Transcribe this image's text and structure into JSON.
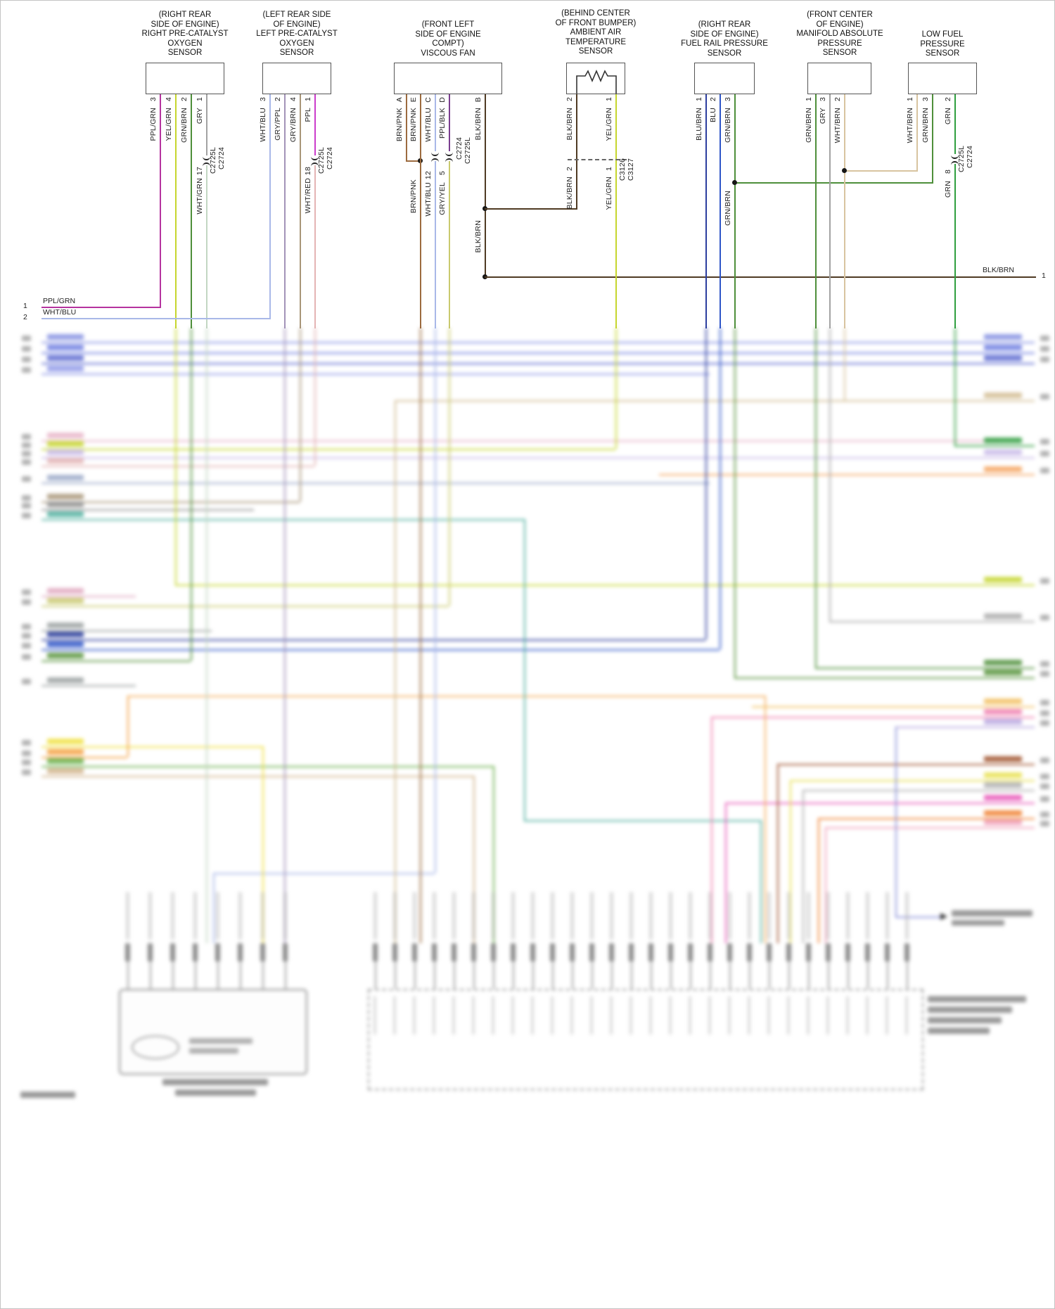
{
  "diagram_type": "automotive wiring diagram",
  "wire_colors": {
    "PPL/GRN": "#b5339f",
    "YEL/GRN": "#c6d62e",
    "GRN/BRN": "#4e8f3a",
    "GRY": "#a2a2a2",
    "WHT/GRN": "#c3d6c3",
    "WHT/BLU": "#a9b8e8",
    "GRY/PPL": "#a393b8",
    "GRY/BRN": "#a89578",
    "PPL": "#cb3ccb",
    "WHT/RED": "#e4b4b4",
    "BRN/PNK": "#9c6b3f",
    "PPL/BLK": "#7a3e8f",
    "GRY/YEL": "#c9c96e",
    "BLK/BRN": "#4f3a23",
    "BLU/BRN": "#2c3e9e",
    "BLU": "#2e55c8",
    "WHT/BRN": "#d8c4a0",
    "GRN": "#2f9e3f"
  },
  "components": [
    {
      "title": "(RIGHT REAR\nSIDE OF ENGINE)\nRIGHT PRE-CATALYST\nOXYGEN\nSENSOR",
      "pins": [
        {
          "pin": "3",
          "wire": "PPL/GRN"
        },
        {
          "pin": "4",
          "wire": "YEL/GRN"
        },
        {
          "pin": "2",
          "wire": "GRN/BRN"
        },
        {
          "pin": "1",
          "wire": "GRY"
        }
      ],
      "inline": {
        "cavity": "17",
        "wire": "WHT/GRN",
        "conn_a": "C2725L",
        "conn_b": "C2724"
      }
    },
    {
      "title": "(LEFT REAR SIDE\nOF ENGINE)\nLEFT PRE-CATALYST\nOXYGEN\nSENSOR",
      "pins": [
        {
          "pin": "3",
          "wire": "WHT/BLU"
        },
        {
          "pin": "2",
          "wire": "GRY/PPL"
        },
        {
          "pin": "4",
          "wire": "GRY/BRN"
        },
        {
          "pin": "1",
          "wire": "PPL"
        }
      ],
      "inline": {
        "cavity": "18",
        "wire": "WHT/RED",
        "conn_a": "C2725L",
        "conn_b": "C2724"
      }
    },
    {
      "title": "(FRONT LEFT\nSIDE OF ENGINE\nCOMPT)\nVISCOUS FAN",
      "pins": [
        {
          "pin": "A",
          "wire": "BRN/PNK"
        },
        {
          "pin": "E",
          "wire": "BRN/PNK"
        },
        {
          "pin": "C",
          "wire": "WHT/BLU"
        },
        {
          "pin": "D",
          "wire": "PPL/BLK"
        },
        {
          "pin": "B",
          "wire": "BLK/BRN"
        }
      ],
      "inline_c": {
        "cavity": "12",
        "wire": "WHT/BLU"
      },
      "inline_d": {
        "cavity": "5",
        "wire": "GRY/YEL"
      },
      "conn_a": "C2724",
      "conn_b": "C2725L",
      "merge_label": "BRN/PNK",
      "b_label": "BLK/BRN"
    },
    {
      "title": "(BEHIND CENTER\nOF FRONT BUMPER)\nAMBIENT AIR\nTEMPERATURE\nSENSOR",
      "pins": [
        {
          "pin": "2",
          "wire": "BLK/BRN"
        },
        {
          "pin": "1",
          "wire": "YEL/GRN"
        }
      ],
      "sub_pins": [
        {
          "pin": "2",
          "wire": "BLK/BRN"
        },
        {
          "pin": "1",
          "wire": "YEL/GRN"
        }
      ],
      "conn_a": "C3126",
      "conn_b": "C3127"
    },
    {
      "title": "(RIGHT REAR\nSIDE OF ENGINE)\nFUEL RAIL PRESSURE\nSENSOR",
      "pins": [
        {
          "pin": "1",
          "wire": "BLU/BRN"
        },
        {
          "pin": "2",
          "wire": "BLU"
        },
        {
          "pin": "3",
          "wire": "GRN/BRN"
        }
      ],
      "junction_label": "GRN/BRN"
    },
    {
      "title": "(FRONT CENTER\nOF ENGINE)\nMANIFOLD ABSOLUTE\nPRESSURE\nSENSOR",
      "pins": [
        {
          "pin": "1",
          "wire": "GRN/BRN"
        },
        {
          "pin": "3",
          "wire": "GRY"
        },
        {
          "pin": "2",
          "wire": "WHT/BRN"
        }
      ]
    },
    {
      "title": "LOW FUEL\nPRESSURE\nSENSOR",
      "pins": [
        {
          "pin": "1",
          "wire": "WHT/BRN"
        },
        {
          "pin": "3",
          "wire": "GRN/BRN"
        },
        {
          "pin": "2",
          "wire": "GRN"
        }
      ],
      "inline": {
        "cavity": "8",
        "wire": "GRN",
        "conn_a": "C2725L",
        "conn_b": "C2724"
      }
    }
  ],
  "left_rows": [
    {
      "num": "1",
      "label": "PPL/GRN"
    },
    {
      "num": "2",
      "label": "WHT/BLU"
    }
  ],
  "right_exit": {
    "label": "BLK/BRN",
    "num": "1"
  }
}
